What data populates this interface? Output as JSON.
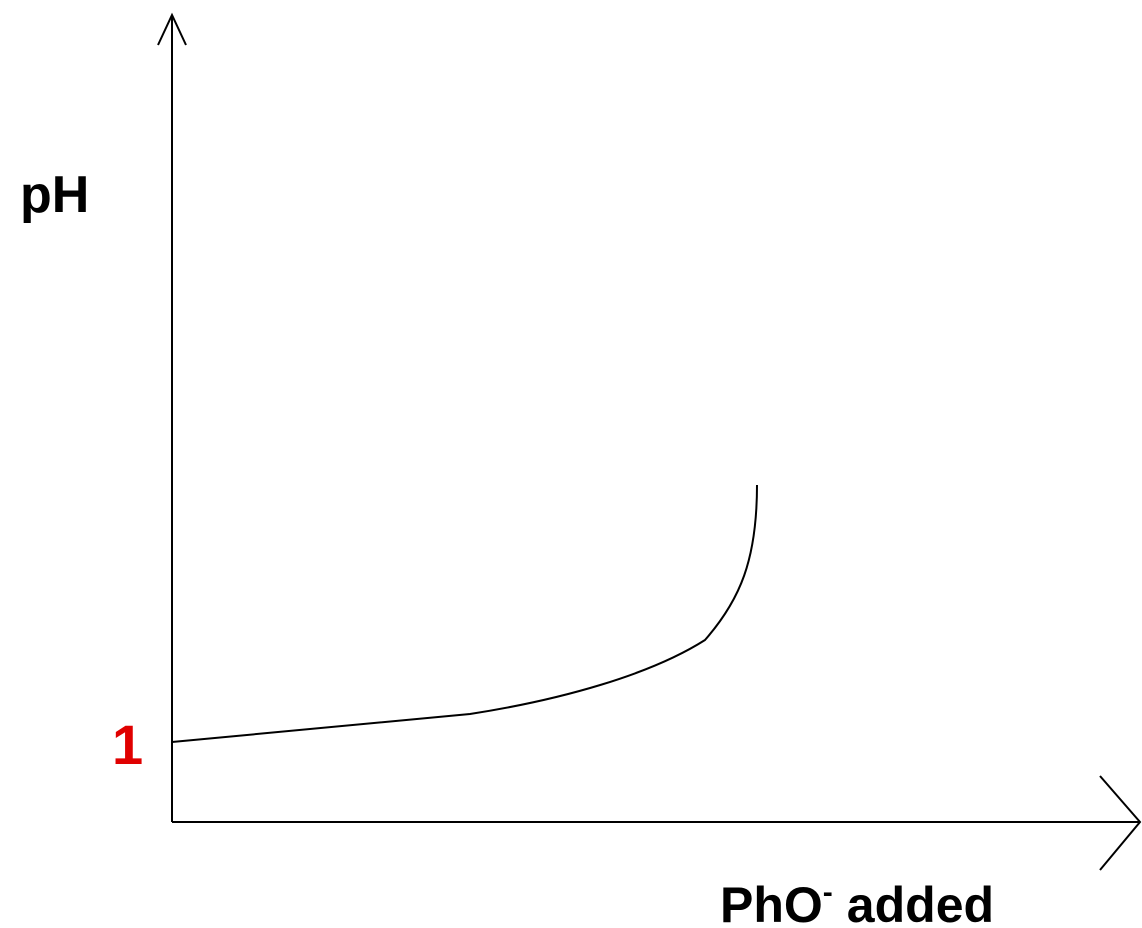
{
  "y_axis_label": "pH",
  "y_marker": "1",
  "x_axis_label": {
    "base": "PhO",
    "superscript": "-",
    "rest": "added"
  }
}
